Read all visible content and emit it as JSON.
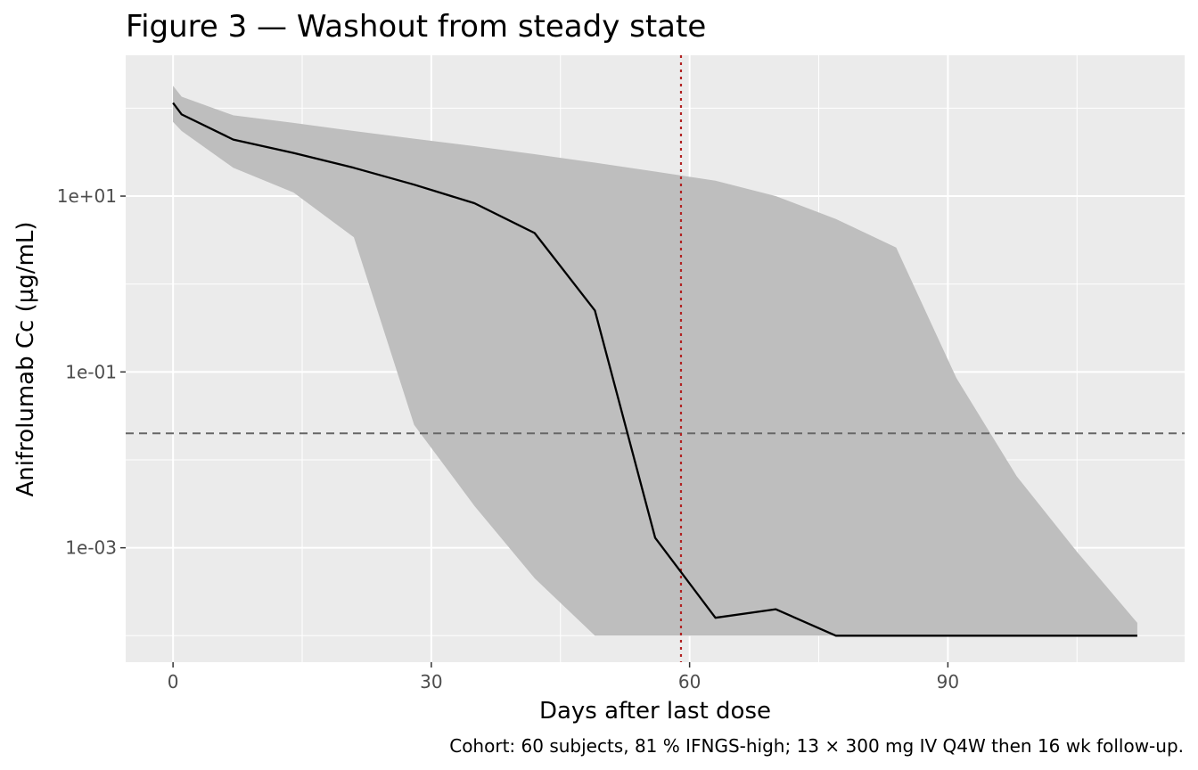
{
  "chart_data": {
    "type": "line",
    "title": "Figure 3 — Washout from steady state",
    "xlabel": "Days after last dose",
    "ylabel": "Anifrolumab Cc (µg/mL)",
    "caption": "Cohort: 60 subjects, 81 % IFNGS-high; 13 × 300 mg IV Q4W then 16 wk follow-up.",
    "x_scale": "linear",
    "y_scale": "log10",
    "xlim": [
      -5.5,
      117.5
    ],
    "ylim": [
      5e-05,
      400
    ],
    "x_ticks": [
      0,
      30,
      60,
      90
    ],
    "x_tick_labels": [
      "0",
      "30",
      "60",
      "90"
    ],
    "y_ticks": [
      0.001,
      0.1,
      10
    ],
    "y_tick_labels": [
      "1e-03",
      "1e-01",
      "1e+01"
    ],
    "grid": true,
    "background": "#ebebeb",
    "series": [
      {
        "kind": "line",
        "color": "#000000",
        "x": [
          0,
          1,
          7,
          14,
          21,
          28,
          35,
          42,
          49,
          56,
          63,
          70,
          77,
          84,
          91,
          98,
          105,
          112
        ],
        "y": [
          115,
          85,
          44,
          31,
          21,
          13.5,
          8.3,
          3.8,
          0.5,
          0.0013,
          0.00016,
          0.0002,
          0.0001,
          0.0001,
          0.0001,
          0.0001,
          0.0001,
          0.0001
        ]
      },
      {
        "kind": "ribbon",
        "color": "#bebebe",
        "x": [
          0,
          1,
          7,
          14,
          21,
          28,
          35,
          42,
          49,
          56,
          63,
          70,
          77,
          84,
          91,
          98,
          105,
          112
        ],
        "lower": [
          70,
          55,
          21,
          11,
          3.4,
          0.025,
          0.003,
          0.00045,
          0.0001,
          0.0001,
          0.0001,
          0.0001,
          0.0001,
          0.0001,
          0.0001,
          0.0001,
          0.0001,
          0.0001
        ],
        "upper": [
          180,
          135,
          83,
          68,
          55,
          45,
          37,
          30,
          24,
          19,
          15,
          10,
          5.5,
          2.6,
          0.085,
          0.0065,
          0.0009,
          0.00014
        ]
      }
    ],
    "reference_lines": [
      {
        "orientation": "horizontal",
        "value": 0.02,
        "style": "dashed",
        "color": "#666666"
      },
      {
        "orientation": "vertical",
        "value": 59,
        "style": "dotted",
        "color": "#b22222"
      }
    ]
  }
}
